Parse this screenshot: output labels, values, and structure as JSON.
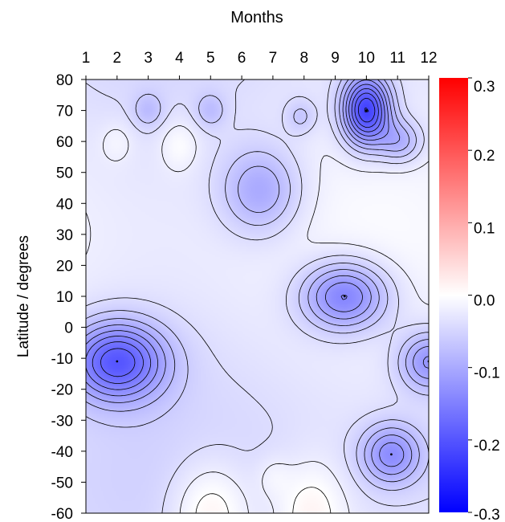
{
  "chart_data": {
    "type": "heatmap",
    "title": "Months",
    "xlabel": "Months",
    "ylabel": "Latitude / degrees",
    "x_axis_position": "top",
    "x": [
      1,
      2,
      3,
      4,
      5,
      6,
      7,
      8,
      9,
      10,
      11,
      12
    ],
    "x_tick_labels": [
      "1",
      "2",
      "3",
      "4",
      "5",
      "6",
      "7",
      "8",
      "9",
      "10",
      "11",
      "12"
    ],
    "xlim": [
      1,
      12
    ],
    "y_ticks": [
      80,
      70,
      60,
      50,
      40,
      30,
      20,
      10,
      0,
      -10,
      -20,
      -30,
      -40,
      -50,
      -60
    ],
    "y_tick_labels": [
      "80",
      "70",
      "60",
      "50",
      "40",
      "30",
      "20",
      "10",
      "0",
      "-10",
      "-20",
      "-30",
      "-40",
      "-50",
      "-60"
    ],
    "ylim": [
      -60,
      80
    ],
    "colorbar": {
      "range": [
        -0.3,
        0.3
      ],
      "ticks": [
        0.3,
        0.2,
        0.1,
        0.0,
        -0.1,
        -0.2,
        -0.3
      ],
      "tick_labels": [
        "0.3",
        "0.2",
        "0.1",
        "0.0",
        "-0.1",
        "-0.2",
        "-0.3"
      ],
      "colors": {
        "max": "#ff0000",
        "mid": "#ffffff",
        "min": "#0000ff"
      }
    },
    "contour_interval": 0.02,
    "features": [
      {
        "kind": "minimum",
        "x": 10.0,
        "y": 70,
        "value": -0.2
      },
      {
        "kind": "minimum",
        "x": 2.0,
        "y": -11,
        "value": -0.16
      },
      {
        "kind": "minimum",
        "x": 9.3,
        "y": 10,
        "value": -0.13
      },
      {
        "kind": "minimum",
        "x": 12.0,
        "y": -11,
        "value": -0.1
      },
      {
        "kind": "minimum",
        "x": 6.6,
        "y": 44,
        "value": -0.08
      },
      {
        "kind": "minimum",
        "x": 10.8,
        "y": -41,
        "value": -0.1
      },
      {
        "kind": "minimum",
        "x": 11.1,
        "y": 60,
        "value": -0.07
      },
      {
        "kind": "minimum",
        "x": 7.9,
        "y": 68,
        "value": -0.04
      },
      {
        "kind": "minimum",
        "x": 3.0,
        "y": 70,
        "value": -0.04
      },
      {
        "kind": "minimum",
        "x": 5.0,
        "y": 70,
        "value": -0.04
      },
      {
        "kind": "maximum",
        "x": 5.0,
        "y": -60,
        "value": 0.06
      },
      {
        "kind": "maximum",
        "x": 8.2,
        "y": -60,
        "value": 0.05
      },
      {
        "kind": "maximum",
        "x": 4.0,
        "y": 59,
        "value": 0.03
      },
      {
        "kind": "maximum",
        "x": 2.0,
        "y": 60,
        "value": 0.02
      },
      {
        "kind": "maximum",
        "x": 7.0,
        "y": -48,
        "value": 0.02
      }
    ]
  }
}
